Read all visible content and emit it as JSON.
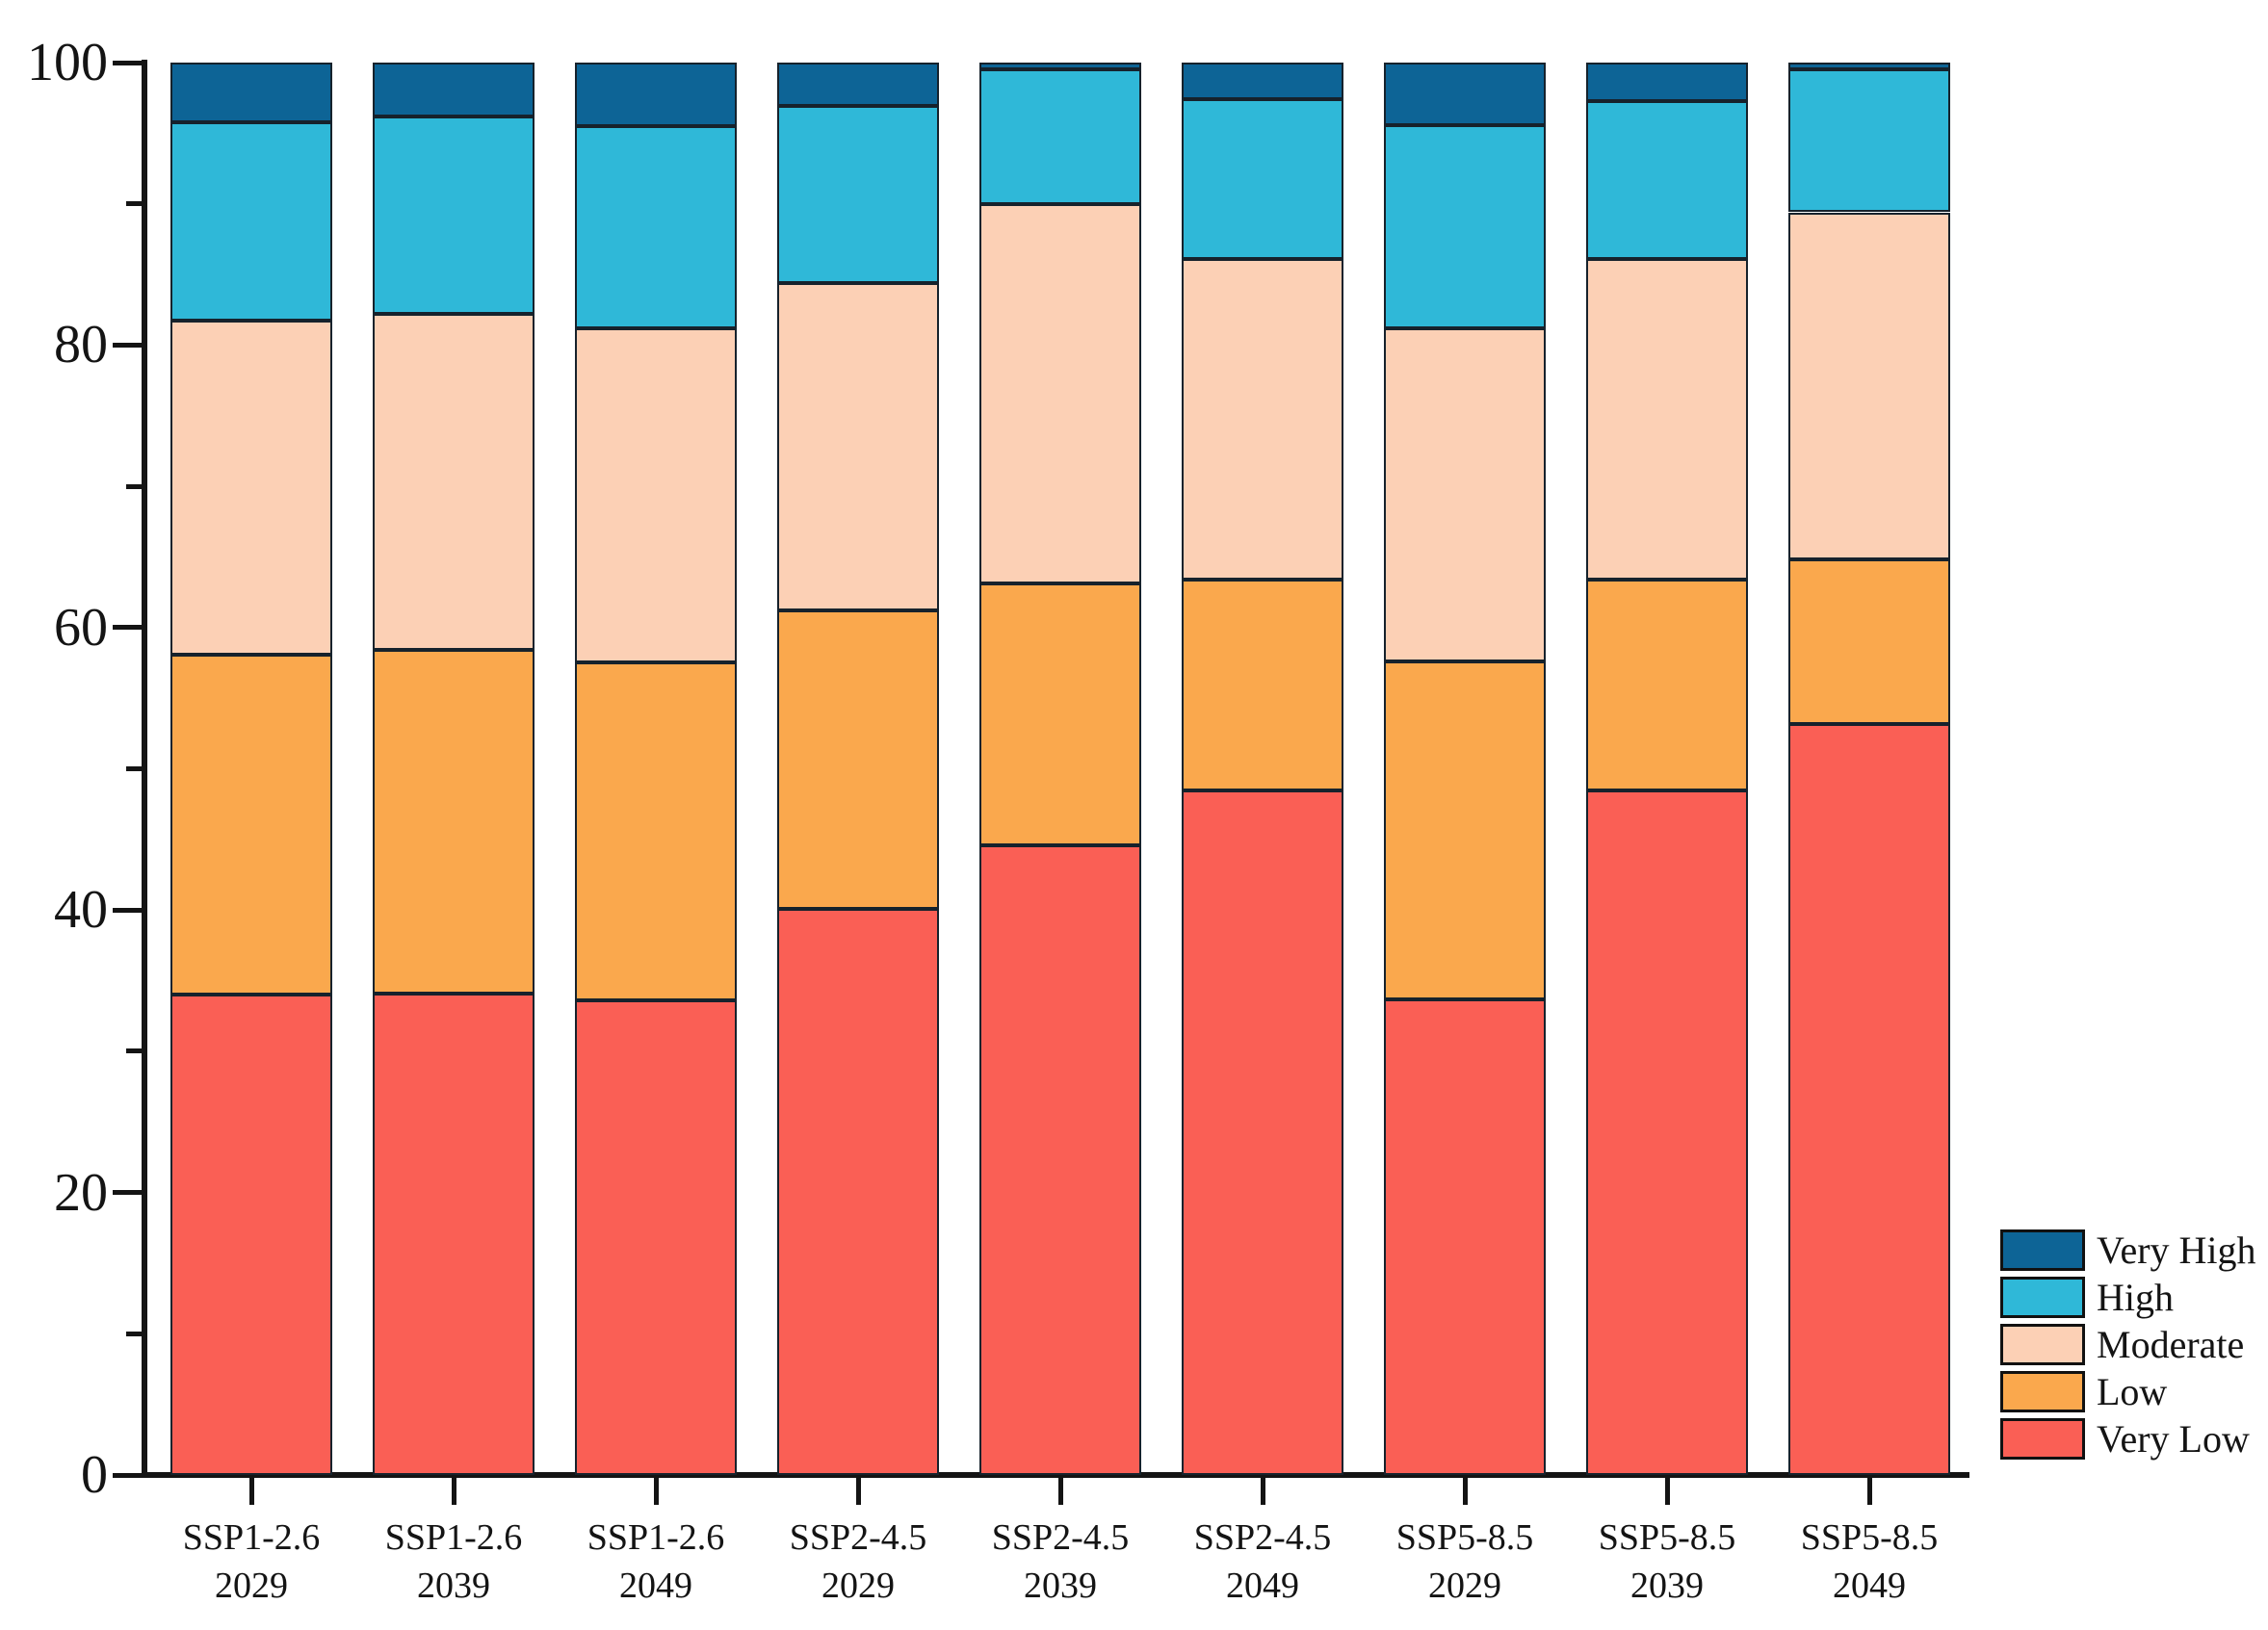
{
  "chart_data": {
    "type": "bar",
    "stacked": true,
    "orientation": "vertical",
    "title": "",
    "xlabel": "",
    "ylabel": "",
    "ylim": [
      0,
      100
    ],
    "y_major_ticks": [
      0,
      20,
      40,
      60,
      80,
      100
    ],
    "y_minor_ticks": [
      10,
      30,
      50,
      70,
      90
    ],
    "grid": false,
    "axis_color": "#141414",
    "bar_border_color": "#16222c",
    "categories": [
      {
        "scenario": "SSP1-2.6",
        "year": "2029"
      },
      {
        "scenario": "SSP1-2.6",
        "year": "2039"
      },
      {
        "scenario": "SSP1-2.6",
        "year": "2049"
      },
      {
        "scenario": "SSP2-4.5",
        "year": "2029"
      },
      {
        "scenario": "SSP2-4.5",
        "year": "2039"
      },
      {
        "scenario": "SSP2-4.5",
        "year": "2049"
      },
      {
        "scenario": "SSP5-8.5",
        "year": "2029"
      },
      {
        "scenario": "SSP5-8.5",
        "year": "2039"
      },
      {
        "scenario": "SSP5-8.5",
        "year": "2049"
      }
    ],
    "series": [
      {
        "name": "Very Low",
        "color": "#FA5F55",
        "values": [
          34.0,
          34.1,
          33.6,
          40.1,
          44.6,
          48.5,
          33.7,
          48.5,
          53.2
        ]
      },
      {
        "name": "Low",
        "color": "#FAA84D",
        "values": [
          24.1,
          24.3,
          23.9,
          21.1,
          18.5,
          14.9,
          23.9,
          14.9,
          11.6
        ]
      },
      {
        "name": "Moderate",
        "color": "#FCD0B5",
        "values": [
          23.6,
          23.8,
          23.7,
          23.2,
          26.9,
          22.7,
          23.6,
          22.7,
          24.6
        ]
      },
      {
        "name": "High",
        "color": "#2FB8D8",
        "values": [
          14.1,
          14.0,
          14.3,
          12.5,
          9.5,
          11.3,
          14.4,
          11.2,
          10.1
        ]
      },
      {
        "name": "Very High",
        "color": "#0D6496",
        "values": [
          4.2,
          3.8,
          4.5,
          3.1,
          0.5,
          2.6,
          4.4,
          2.7,
          0.5
        ]
      }
    ],
    "legend": {
      "position": "right-bottom",
      "entries_top_to_bottom": [
        "Very High",
        "High",
        "Moderate",
        "Low",
        "Very Low"
      ]
    }
  }
}
